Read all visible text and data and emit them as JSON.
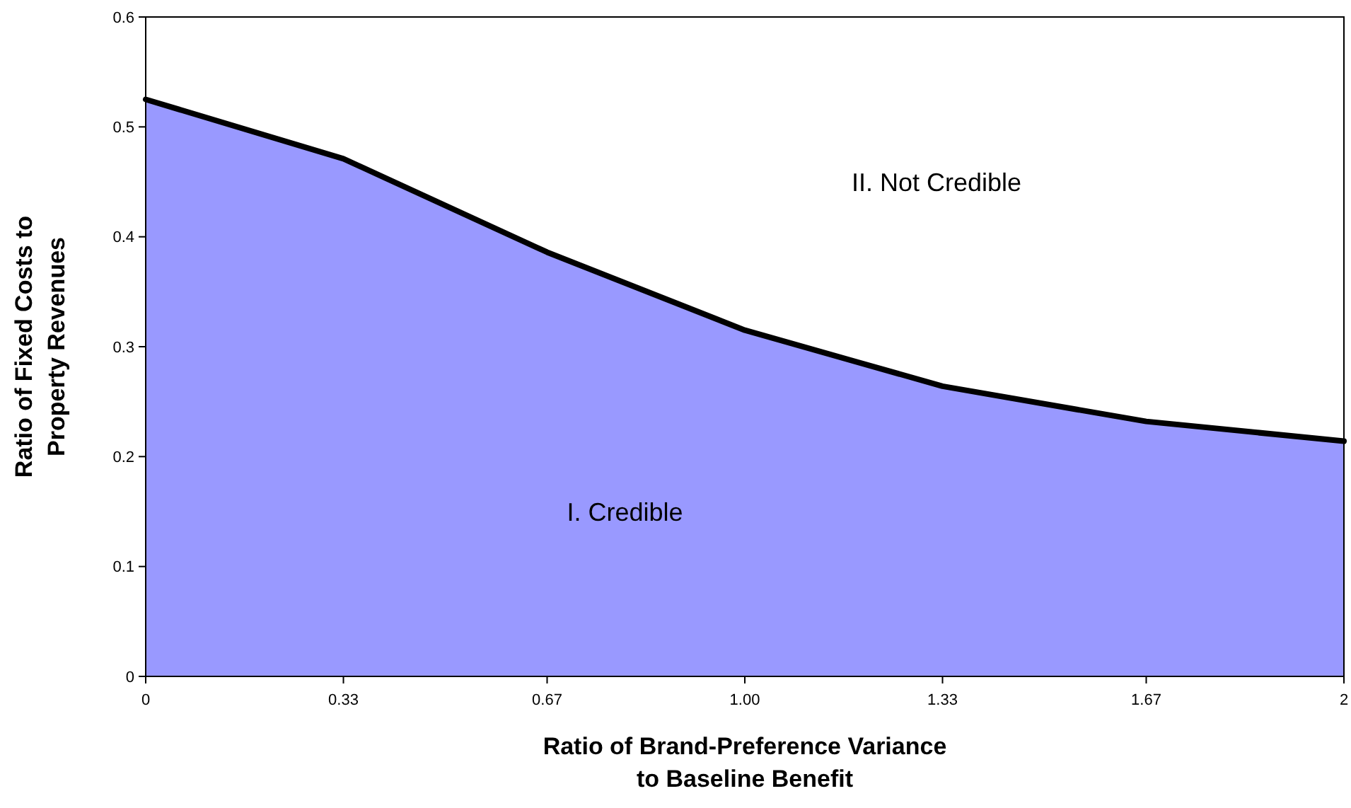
{
  "chart_data": {
    "type": "area",
    "xlabel": "Ratio of Brand-Preference Variance\nto Baseline Benefit",
    "ylabel": "Ratio of Fixed Costs to\nProperty Revenues",
    "x": [
      0,
      0.33,
      0.67,
      1,
      1.33,
      1.67,
      2
    ],
    "series": [
      {
        "color": "#9999ff",
        "values": [
          0.525,
          0.471,
          0.386,
          0.315,
          0.264,
          0.232,
          0.214
        ]
      }
    ],
    "xlim": [
      0,
      2
    ],
    "xticks": [
      0,
      0.33,
      0.67,
      {
        "value": 1,
        "label": "1.00"
      },
      1.33,
      1.67,
      2
    ],
    "ylim": [
      0,
      0.6
    ],
    "yticks": [
      0,
      0.1,
      0.2,
      0.3,
      0.4,
      0.5,
      0.6
    ],
    "grid": false,
    "annotations": [
      "I. Credible",
      "II. Not Credible"
    ]
  }
}
